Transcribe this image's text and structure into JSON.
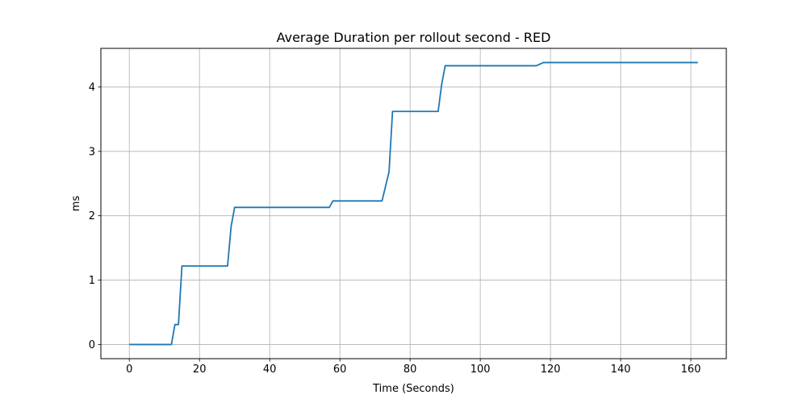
{
  "chart_data": {
    "type": "line",
    "title": "Average Duration per rollout second - RED",
    "xlabel": "Time (Seconds)",
    "ylabel": "ms",
    "xlim": [
      -8.1,
      170.1
    ],
    "ylim": [
      -0.22,
      4.6
    ],
    "xticks": [
      0,
      20,
      40,
      60,
      80,
      100,
      120,
      140,
      160
    ],
    "yticks": [
      0,
      1,
      2,
      3,
      4
    ],
    "grid": true,
    "series": [
      {
        "color": "#1f77b4",
        "points": [
          [
            0,
            0.0
          ],
          [
            12,
            0.0
          ],
          [
            13,
            0.31
          ],
          [
            14,
            0.31
          ],
          [
            15,
            1.22
          ],
          [
            28,
            1.22
          ],
          [
            29,
            1.83
          ],
          [
            30,
            2.13
          ],
          [
            57,
            2.13
          ],
          [
            58,
            2.23
          ],
          [
            72,
            2.23
          ],
          [
            74,
            2.68
          ],
          [
            75,
            3.62
          ],
          [
            88,
            3.62
          ],
          [
            89,
            4.04
          ],
          [
            90,
            4.33
          ],
          [
            116,
            4.33
          ],
          [
            118,
            4.38
          ],
          [
            162,
            4.38
          ]
        ]
      }
    ]
  }
}
